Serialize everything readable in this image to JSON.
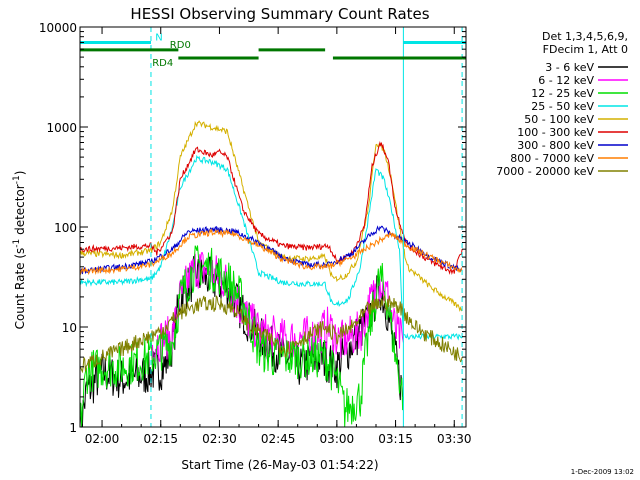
{
  "chart_data": {
    "type": "line",
    "title": "HESSI Observing Summary Count Rates",
    "xlabel": "Start Time (26-May-03 01:54:22)",
    "ylabel": "Count Rate (s^-1 detector^-1)",
    "ylabel_main": "Count Rate (s",
    "ylabel_exp1": "-1",
    "ylabel_mid": " detector",
    "ylabel_exp2": "-1",
    "ylabel_close": ")",
    "y_scale": "log",
    "ylim": [
      1,
      10000
    ],
    "xlim": [
      "01:54:22",
      "03:33:00"
    ],
    "x_ticks": [
      "02:00",
      "02:15",
      "02:30",
      "02:45",
      "03:00",
      "03:15",
      "03:30"
    ],
    "y_ticks": [
      {
        "v": 1,
        "label": "1"
      },
      {
        "v": 10,
        "label": "10"
      },
      {
        "v": 100,
        "label": "100"
      },
      {
        "v": 1000,
        "label": "1000"
      },
      {
        "v": 10000,
        "label": "10000"
      }
    ],
    "legend": {
      "header1": "Det 1,3,4,5,6,9,",
      "header2": "FDecim 1, Att 0",
      "placement": "right"
    },
    "state_bars": [
      {
        "label": "N",
        "color": "#00e5e5",
        "y": 7000,
        "segments": [
          [
            "01:54:22",
            "02:12:30"
          ],
          [
            "03:17:00",
            "03:33:00"
          ]
        ]
      },
      {
        "label": "RD0",
        "color": "#007700",
        "y": 5900,
        "segments": [
          [
            "01:54:22",
            "02:19:30"
          ],
          [
            "02:40:00",
            "02:57:00"
          ]
        ]
      },
      {
        "label": "RD4",
        "color": "#007700",
        "y": 4900,
        "segments": [
          [
            "02:19:30",
            "02:40:00"
          ],
          [
            "02:59:00",
            "03:32:00"
          ],
          [
            "03:32:00",
            "03:33:00"
          ]
        ]
      }
    ],
    "vlines": [
      {
        "t": "01:54:22",
        "style": "solid"
      },
      {
        "t": "02:12:30",
        "style": "dashed"
      },
      {
        "t": "03:17:00",
        "style": "solid"
      },
      {
        "t": "03:32:00",
        "style": "dashed"
      }
    ],
    "footer_date": "1-Dec-2009 13:02",
    "series": [
      {
        "name": "3 - 6 keV",
        "color": "#000000",
        "points": [
          [
            "01:54:22",
            1.0
          ],
          [
            "01:56:00",
            2.2
          ],
          [
            "02:00:00",
            3.5
          ],
          [
            "02:05:00",
            3.0
          ],
          [
            "02:09:00",
            3.2
          ],
          [
            "02:12:30",
            3.5
          ],
          [
            "02:16:00",
            4.0
          ],
          [
            "02:18:00",
            7.0
          ],
          [
            "02:20:00",
            20.0
          ],
          [
            "02:24:00",
            33.0
          ],
          [
            "02:28:00",
            30.0
          ],
          [
            "02:32:00",
            25.0
          ],
          [
            "02:36:00",
            14.0
          ],
          [
            "02:40:00",
            8.0
          ],
          [
            "02:44:00",
            6.0
          ],
          [
            "02:50:00",
            4.0
          ],
          [
            "02:56:00",
            5.0
          ],
          [
            "03:00:00",
            4.0
          ],
          [
            "03:04:00",
            7.0
          ],
          [
            "03:08:00",
            12.0
          ],
          [
            "03:11:00",
            25.0
          ],
          [
            "03:13:00",
            14.0
          ],
          [
            "03:15:00",
            5.0
          ],
          [
            "03:17:00",
            2.0
          ]
        ]
      },
      {
        "name": "6 - 12 keV",
        "color": "#ff00ff",
        "points": [
          [
            "02:12:30",
            6.5
          ],
          [
            "02:15:00",
            7.5
          ],
          [
            "02:18:00",
            8.0
          ],
          [
            "02:20:00",
            20.0
          ],
          [
            "02:24:00",
            40.0
          ],
          [
            "02:28:00",
            36.0
          ],
          [
            "02:32:00",
            28.0
          ],
          [
            "02:36:00",
            14.0
          ],
          [
            "02:40:00",
            9.0
          ],
          [
            "02:46:00",
            7.5
          ],
          [
            "02:54:00",
            8.0
          ],
          [
            "02:58:00",
            10.0
          ],
          [
            "03:01:00",
            7.0
          ],
          [
            "03:06:00",
            9.0
          ],
          [
            "03:08:00",
            15.0
          ],
          [
            "03:11:00",
            30.0
          ],
          [
            "03:13:00",
            20.0
          ],
          [
            "03:15:00",
            9.0
          ],
          [
            "03:17:00",
            7.0
          ]
        ]
      },
      {
        "name": "12 - 25 keV",
        "color": "#00dd00",
        "points": [
          [
            "01:54:22",
            1.0
          ],
          [
            "01:56:00",
            3.5
          ],
          [
            "02:00:00",
            4.0
          ],
          [
            "02:05:00",
            4.0
          ],
          [
            "02:12:30",
            5.0
          ],
          [
            "02:15:00",
            6.0
          ],
          [
            "02:18:00",
            7.0
          ],
          [
            "02:20:00",
            20.0
          ],
          [
            "02:24:00",
            42.0
          ],
          [
            "02:28:00",
            38.0
          ],
          [
            "02:32:00",
            30.0
          ],
          [
            "02:36:00",
            18.0
          ],
          [
            "02:40:00",
            6.0
          ],
          [
            "02:44:00",
            5.0
          ],
          [
            "02:50:00",
            5.0
          ],
          [
            "02:57:00",
            5.0
          ],
          [
            "03:00:00",
            3.0
          ],
          [
            "03:02:00",
            1.5
          ],
          [
            "03:06:00",
            2.0
          ],
          [
            "03:08:00",
            8.0
          ],
          [
            "03:11:00",
            32.0
          ],
          [
            "03:13:00",
            18.0
          ],
          [
            "03:15:00",
            5.0
          ],
          [
            "03:17:00",
            2.0
          ]
        ]
      },
      {
        "name": "25 - 50 keV",
        "color": "#00e5e5",
        "points": [
          [
            "01:54:22",
            28.0
          ],
          [
            "02:05:00",
            28.0
          ],
          [
            "02:10:00",
            30.0
          ],
          [
            "02:12:30",
            30.0
          ],
          [
            "02:15:00",
            40.0
          ],
          [
            "02:18:00",
            100.0
          ],
          [
            "02:20:00",
            250.0
          ],
          [
            "02:24:00",
            480.0
          ],
          [
            "02:28:00",
            450.0
          ],
          [
            "02:32:00",
            380.0
          ],
          [
            "02:36:00",
            120.0
          ],
          [
            "02:40:00",
            35.0
          ],
          [
            "02:46:00",
            28.0
          ],
          [
            "02:52:00",
            27.0
          ],
          [
            "02:57:00",
            27.0
          ],
          [
            "02:59:00",
            16.0
          ],
          [
            "03:03:00",
            19.0
          ],
          [
            "03:06:00",
            40.0
          ],
          [
            "03:08:00",
            120.0
          ],
          [
            "03:10:00",
            380.0
          ],
          [
            "03:12:00",
            300.0
          ],
          [
            "03:14:00",
            150.0
          ],
          [
            "03:16:00",
            60.0
          ],
          [
            "03:17:00",
            8.0
          ],
          [
            "03:32:00",
            8.0
          ]
        ]
      },
      {
        "name": "50 - 100 keV",
        "color": "#d4b000",
        "points": [
          [
            "01:54:22",
            55.0
          ],
          [
            "02:05:00",
            52.0
          ],
          [
            "02:12:30",
            58.0
          ],
          [
            "02:15:00",
            70.0
          ],
          [
            "02:18:00",
            150.0
          ],
          [
            "02:20:00",
            500.0
          ],
          [
            "02:24:00",
            1100.0
          ],
          [
            "02:28:00",
            1000.0
          ],
          [
            "02:32:00",
            900.0
          ],
          [
            "02:36:00",
            250.0
          ],
          [
            "02:40:00",
            70.0
          ],
          [
            "02:46:00",
            50.0
          ],
          [
            "02:52:00",
            48.0
          ],
          [
            "02:57:00",
            50.0
          ],
          [
            "02:59:00",
            30.0
          ],
          [
            "03:02:00",
            32.0
          ],
          [
            "03:05:00",
            45.0
          ],
          [
            "03:08:00",
            150.0
          ],
          [
            "03:10:00",
            700.0
          ],
          [
            "03:12:00",
            600.0
          ],
          [
            "03:14:00",
            300.0
          ],
          [
            "03:16:00",
            100.0
          ],
          [
            "03:18:00",
            40.0
          ],
          [
            "03:24:00",
            25.0
          ],
          [
            "03:32:00",
            15.0
          ]
        ]
      },
      {
        "name": "100 - 300 keV",
        "color": "#dd0000",
        "points": [
          [
            "01:54:22",
            60.0
          ],
          [
            "02:05:00",
            62.0
          ],
          [
            "02:12:30",
            65.0
          ],
          [
            "02:14:00",
            55.0
          ],
          [
            "02:18:00",
            90.0
          ],
          [
            "02:20:00",
            300.0
          ],
          [
            "02:24:00",
            600.0
          ],
          [
            "02:28:00",
            520.0
          ],
          [
            "02:30:00",
            560.0
          ],
          [
            "02:32:00",
            500.0
          ],
          [
            "02:36:00",
            150.0
          ],
          [
            "02:40:00",
            85.0
          ],
          [
            "02:46:00",
            65.0
          ],
          [
            "02:52:00",
            62.0
          ],
          [
            "02:58:00",
            65.0
          ],
          [
            "03:00:00",
            45.0
          ],
          [
            "03:04:00",
            55.0
          ],
          [
            "03:07:00",
            100.0
          ],
          [
            "03:09:00",
            400.0
          ],
          [
            "03:11:00",
            700.0
          ],
          [
            "03:13:00",
            500.0
          ],
          [
            "03:15:00",
            150.0
          ],
          [
            "03:18:00",
            65.0
          ],
          [
            "03:24:00",
            45.0
          ],
          [
            "03:30:00",
            35.0
          ],
          [
            "03:32:00",
            60.0
          ]
        ]
      },
      {
        "name": "300 - 800 keV",
        "color": "#0000cc",
        "points": [
          [
            "01:54:22",
            36.0
          ],
          [
            "02:05:00",
            40.0
          ],
          [
            "02:12:30",
            45.0
          ],
          [
            "02:18:00",
            60.0
          ],
          [
            "02:22:00",
            90.0
          ],
          [
            "02:28:00",
            95.0
          ],
          [
            "02:34:00",
            90.0
          ],
          [
            "02:40:00",
            70.0
          ],
          [
            "02:46:00",
            50.0
          ],
          [
            "02:52:00",
            42.0
          ],
          [
            "02:58:00",
            42.0
          ],
          [
            "03:04:00",
            55.0
          ],
          [
            "03:08:00",
            80.0
          ],
          [
            "03:11:00",
            100.0
          ],
          [
            "03:14:00",
            85.0
          ],
          [
            "03:18:00",
            70.0
          ],
          [
            "03:24:00",
            50.0
          ],
          [
            "03:32:00",
            36.0
          ]
        ]
      },
      {
        "name": "800 - 7000 keV",
        "color": "#ff7f00",
        "points": [
          [
            "01:54:22",
            36.0
          ],
          [
            "02:05:00",
            38.0
          ],
          [
            "02:12:30",
            42.0
          ],
          [
            "02:18:00",
            55.0
          ],
          [
            "02:22:00",
            80.0
          ],
          [
            "02:28:00",
            88.0
          ],
          [
            "02:34:00",
            85.0
          ],
          [
            "02:40:00",
            65.0
          ],
          [
            "02:46:00",
            48.0
          ],
          [
            "02:52:00",
            40.0
          ],
          [
            "02:58:00",
            40.0
          ],
          [
            "03:04:00",
            50.0
          ],
          [
            "03:10:00",
            70.0
          ],
          [
            "03:14:00",
            85.0
          ],
          [
            "03:18:00",
            65.0
          ],
          [
            "03:24:00",
            50.0
          ],
          [
            "03:32:00",
            36.0
          ]
        ]
      },
      {
        "name": "7000 - 20000 keV",
        "color": "#808000",
        "points": [
          [
            "01:54:22",
            4.0
          ],
          [
            "02:00:00",
            5.0
          ],
          [
            "02:05:00",
            6.0
          ],
          [
            "02:10:00",
            7.5
          ],
          [
            "02:15:00",
            9.0
          ],
          [
            "02:20:00",
            14.0
          ],
          [
            "02:25:00",
            17.0
          ],
          [
            "02:30:00",
            17.0
          ],
          [
            "02:34:00",
            15.0
          ],
          [
            "02:38:00",
            10.0
          ],
          [
            "02:42:00",
            8.0
          ],
          [
            "02:47:00",
            6.0
          ],
          [
            "02:52:00",
            8.0
          ],
          [
            "02:57:00",
            10.0
          ],
          [
            "03:00:00",
            8.0
          ],
          [
            "03:04:00",
            10.0
          ],
          [
            "03:08:00",
            15.0
          ],
          [
            "03:12:00",
            18.0
          ],
          [
            "03:16:00",
            16.0
          ],
          [
            "03:20:00",
            10.0
          ],
          [
            "03:26:00",
            7.0
          ],
          [
            "03:32:00",
            5.0
          ]
        ]
      }
    ]
  }
}
